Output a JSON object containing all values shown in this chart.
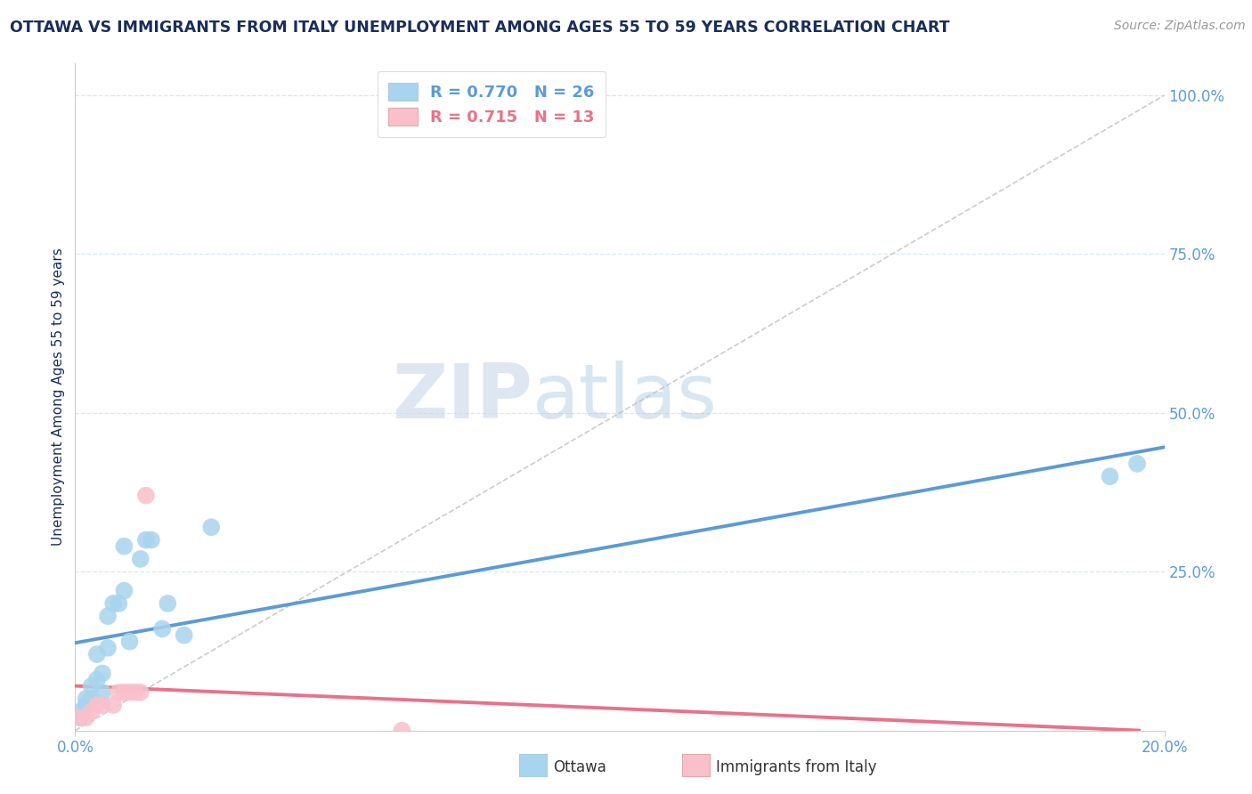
{
  "title": "OTTAWA VS IMMIGRANTS FROM ITALY UNEMPLOYMENT AMONG AGES 55 TO 59 YEARS CORRELATION CHART",
  "source": "Source: ZipAtlas.com",
  "ylabel": "Unemployment Among Ages 55 to 59 years",
  "xlim": [
    0.0,
    0.2
  ],
  "ylim": [
    0.0,
    1.05
  ],
  "ytick_positions": [
    0.25,
    0.5,
    0.75,
    1.0
  ],
  "ytick_labels": [
    "25.0%",
    "50.0%",
    "75.0%",
    "100.0%"
  ],
  "xtick_positions": [
    0.0,
    0.2
  ],
  "xtick_labels": [
    "0.0%",
    "20.0%"
  ],
  "ottawa_R": 0.77,
  "ottawa_N": 26,
  "italy_R": 0.715,
  "italy_N": 13,
  "ottawa_color": "#a8d4ed",
  "italy_color": "#f9c0cc",
  "trend_ottawa_color": "#5b9bd5",
  "trend_italy_color": "#e8728a",
  "diagonal_color": "#cccccc",
  "background_color": "#ffffff",
  "grid_color": "#d8e8f0",
  "title_color": "#1a2e5a",
  "axis_label_color": "#5b9bd5",
  "legend_label_ottawa": "Ottawa",
  "legend_label_italy": "Immigrants from Italy",
  "ottawa_points_x": [
    0.001,
    0.001,
    0.002,
    0.002,
    0.003,
    0.003,
    0.004,
    0.004,
    0.005,
    0.005,
    0.006,
    0.006,
    0.007,
    0.008,
    0.009,
    0.009,
    0.01,
    0.012,
    0.013,
    0.014,
    0.016,
    0.017,
    0.02,
    0.025,
    0.19,
    0.195
  ],
  "ottawa_points_y": [
    0.02,
    0.03,
    0.04,
    0.05,
    0.05,
    0.07,
    0.08,
    0.12,
    0.06,
    0.09,
    0.13,
    0.18,
    0.2,
    0.2,
    0.22,
    0.29,
    0.14,
    0.27,
    0.3,
    0.3,
    0.16,
    0.2,
    0.15,
    0.32,
    0.4,
    0.42
  ],
  "italy_points_x": [
    0.001,
    0.002,
    0.003,
    0.004,
    0.005,
    0.007,
    0.008,
    0.009,
    0.01,
    0.011,
    0.012,
    0.013,
    0.06
  ],
  "italy_points_y": [
    0.02,
    0.02,
    0.03,
    0.04,
    0.04,
    0.04,
    0.06,
    0.06,
    0.06,
    0.06,
    0.06,
    0.37,
    0.0
  ],
  "watermark_ZIP": "ZIP",
  "watermark_atlas": "atlas"
}
